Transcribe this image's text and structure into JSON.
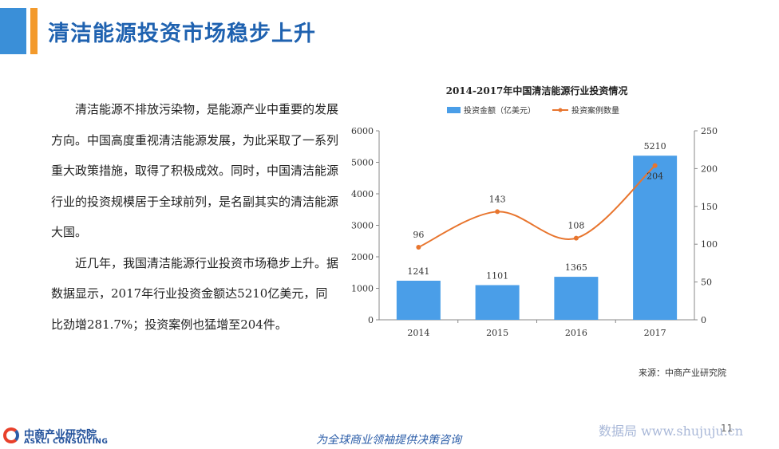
{
  "header": {
    "title": "清洁能源投资市场稳步上升"
  },
  "body": {
    "paragraph1": "清洁能源不排放污染物，是能源产业中重要的发展方向。中国高度重视清洁能源发展，为此采取了一系列重大政策措施，取得了积极成效。同时，中国清洁能源行业的投资规模居于全球前列，是名副其实的清洁能源大国。",
    "paragraph2": "近几年，我国清洁能源行业投资市场稳步上升。据数据显示，2017年行业投资金额达5210亿美元，同比劲增281.7%；投资案例也猛增至204件。"
  },
  "chart_data": {
    "type": "bar",
    "title": "2014-2017年中国清洁能源行业投资情况",
    "categories": [
      "2014",
      "2015",
      "2016",
      "2017"
    ],
    "series": [
      {
        "name": "投资金额（亿美元）",
        "type": "bar",
        "axis": "left",
        "color": "#4a9ee8",
        "values": [
          1241,
          1101,
          1365,
          5210
        ]
      },
      {
        "name": "投资案例数量",
        "type": "line",
        "axis": "right",
        "color": "#e8752e",
        "values": [
          96,
          143,
          108,
          204
        ]
      }
    ],
    "y_left": {
      "ylim": [
        0,
        6000
      ],
      "ticks": [
        "0",
        "1000",
        "2000",
        "3000",
        "4000",
        "5000",
        "6000"
      ]
    },
    "y_right": {
      "ylim": [
        0,
        250
      ],
      "ticks": [
        "0",
        "50",
        "100",
        "150",
        "200",
        "250"
      ]
    },
    "legend": "top",
    "grid": false,
    "source": "来源：中商产业研究院"
  },
  "footer": {
    "logo_cn": "中商产业研究院",
    "logo_en": "ASKCI CONSULTING",
    "slogan": "为全球商业领袖提供决策咨询",
    "watermark": "数据局 www.shujuju.cn",
    "page_number": "11"
  }
}
